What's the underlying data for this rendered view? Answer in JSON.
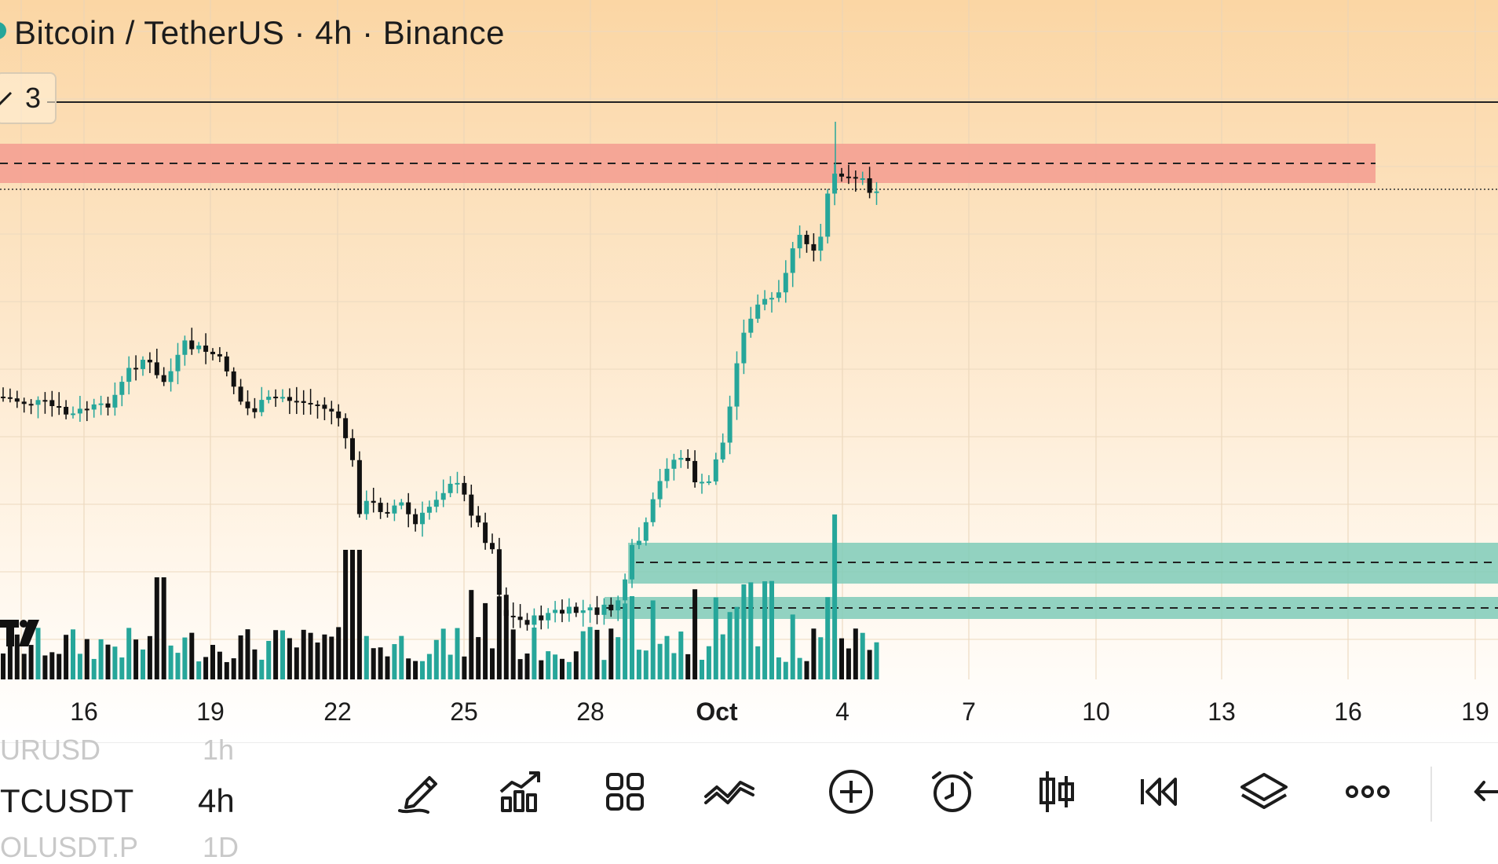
{
  "header": {
    "symbol_title": "Bitcoin / TetherUS · 4h · Binance",
    "indicator_count": "3"
  },
  "chart": {
    "x_axis_labels": [
      "16",
      "19",
      "22",
      "25",
      "28",
      "Oct",
      "4",
      "7",
      "10",
      "13",
      "16",
      "19"
    ],
    "bold_label": "Oct",
    "colors": {
      "up": "#26a69a",
      "down": "#111111",
      "resistance_zone": "#f4a092",
      "support_zone": "#7fcbb8",
      "background_top": "#fbd6a4"
    }
  },
  "watchlist": {
    "previous": {
      "symbol": "URUSD",
      "interval": "1h"
    },
    "current": {
      "symbol": "TCUSDT",
      "interval": "4h"
    },
    "next": {
      "symbol": "OLUSDT.P",
      "interval": "1D"
    }
  },
  "toolbar": {
    "icons": [
      "drawing-pencil-icon",
      "indicators-icon",
      "layout-grid-icon",
      "chart-type-line-icon",
      "add-plus-icon",
      "alarm-clock-icon",
      "candles-icon",
      "replay-rewind-icon",
      "layers-icon",
      "more-dots-icon",
      "back-arrow-icon"
    ]
  }
}
